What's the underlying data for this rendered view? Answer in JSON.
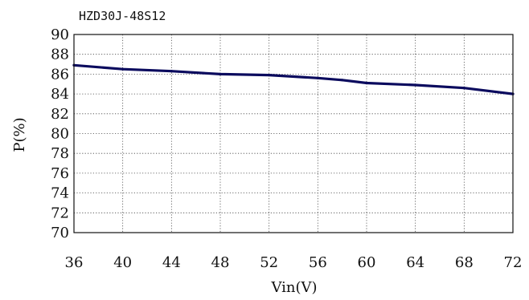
{
  "chart_data": {
    "type": "line",
    "title": "HZD30J-48S12",
    "xlabel": "Vin(V)",
    "ylabel": "P(%)",
    "xlim": [
      36,
      72
    ],
    "ylim": [
      70,
      90
    ],
    "xticks": [
      36,
      40,
      44,
      48,
      52,
      56,
      60,
      64,
      68,
      72
    ],
    "yticks": [
      70,
      72,
      74,
      76,
      78,
      80,
      82,
      84,
      86,
      88,
      90
    ],
    "grid": true,
    "series": [
      {
        "color": "#0b0b5e",
        "x": [
          36,
          40,
          44,
          48,
          52,
          56,
          58,
          60,
          64,
          68,
          72
        ],
        "y": [
          86.9,
          86.5,
          86.3,
          86.0,
          85.9,
          85.6,
          85.4,
          85.1,
          84.9,
          84.6,
          84.0
        ]
      }
    ]
  }
}
